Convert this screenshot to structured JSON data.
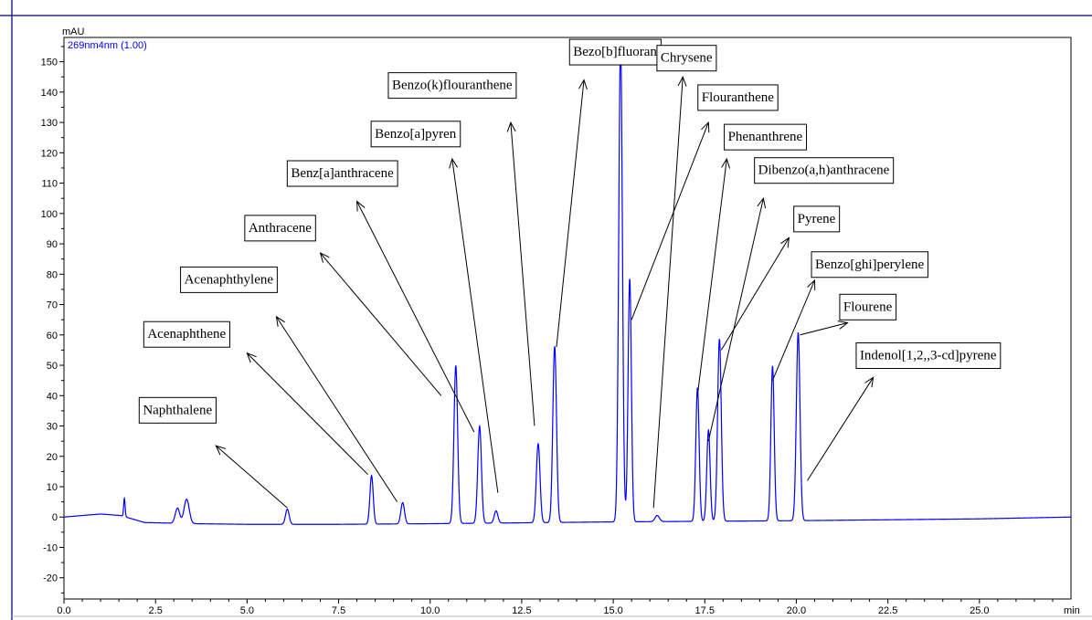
{
  "chart_data": {
    "type": "line",
    "title": "",
    "signal_label": "269nm4nm (1.00)",
    "ylabel": "mAU",
    "xlabel": "min",
    "xlim": [
      0,
      27.5
    ],
    "ylim": [
      -27,
      158
    ],
    "grid": false,
    "x_ticks": [
      "0.0",
      "2.5",
      "5.0",
      "7.5",
      "10.0",
      "12.5",
      "15.0",
      "17.5",
      "20.0",
      "22.5",
      "25.0"
    ],
    "y_ticks": [
      "-20",
      "-10",
      "0",
      "10",
      "20",
      "30",
      "40",
      "50",
      "60",
      "70",
      "80",
      "90",
      "100",
      "110",
      "120",
      "130",
      "140",
      "150"
    ],
    "line_color": "#0000ff",
    "baseline": [
      [
        0,
        0
      ],
      [
        1.0,
        1.0
      ],
      [
        1.55,
        0.5
      ],
      [
        2.2,
        -1.8
      ],
      [
        3.6,
        -2.2
      ],
      [
        5,
        -2.4
      ],
      [
        7.5,
        -2.4
      ],
      [
        10,
        -2.2
      ],
      [
        15,
        -1.6
      ],
      [
        20,
        -1.2
      ],
      [
        25,
        -0.6
      ],
      [
        27.5,
        0
      ]
    ],
    "peaks": [
      {
        "t": 1.65,
        "h": 6,
        "w": 0.02
      },
      {
        "t": 3.1,
        "h": 5,
        "w": 0.06
      },
      {
        "t": 3.35,
        "h": 8,
        "w": 0.07
      },
      {
        "t": 6.1,
        "h": 5,
        "w": 0.05
      },
      {
        "t": 8.4,
        "h": 16,
        "w": 0.045
      },
      {
        "t": 9.25,
        "h": 7,
        "w": 0.05
      },
      {
        "t": 10.7,
        "h": 52,
        "w": 0.05
      },
      {
        "t": 11.35,
        "h": 32,
        "w": 0.05
      },
      {
        "t": 11.8,
        "h": 4,
        "w": 0.05
      },
      {
        "t": 12.95,
        "h": 26,
        "w": 0.05
      },
      {
        "t": 13.4,
        "h": 58,
        "w": 0.05
      },
      {
        "t": 15.2,
        "h": 158,
        "w": 0.05
      },
      {
        "t": 15.45,
        "h": 80,
        "w": 0.045
      },
      {
        "t": 16.2,
        "h": 2,
        "w": 0.06
      },
      {
        "t": 17.3,
        "h": 44,
        "w": 0.045
      },
      {
        "t": 17.6,
        "h": 30,
        "w": 0.045
      },
      {
        "t": 17.9,
        "h": 60,
        "w": 0.05
      },
      {
        "t": 19.35,
        "h": 51,
        "w": 0.045
      },
      {
        "t": 20.05,
        "h": 62,
        "w": 0.05
      }
    ],
    "annotations": [
      {
        "text": "Naphthalene",
        "box_t": 3.1,
        "box_v": 35,
        "from": [
          4.15,
          23.5
        ],
        "to": [
          6.1,
          3
        ]
      },
      {
        "text": "Acenaphthene",
        "box_t": 3.35,
        "box_v": 60,
        "from": [
          5.0,
          54
        ],
        "to": [
          8.3,
          14
        ]
      },
      {
        "text": "Acenaphthylene",
        "box_t": 4.5,
        "box_v": 78,
        "from": [
          5.8,
          66
        ],
        "to": [
          9.1,
          5
        ]
      },
      {
        "text": "Anthracene",
        "box_t": 5.9,
        "box_v": 95,
        "from": [
          7.0,
          87
        ],
        "to": [
          10.3,
          40
        ]
      },
      {
        "text": "Benz[a]anthracene",
        "box_t": 7.6,
        "box_v": 113,
        "from": [
          8.0,
          104
        ],
        "to": [
          11.2,
          28
        ]
      },
      {
        "text": "Benzo[a]pyren",
        "box_t": 9.6,
        "box_v": 126,
        "from": [
          10.6,
          118
        ],
        "to": [
          11.85,
          8
        ]
      },
      {
        "text": "Benzo(k)flouranthene",
        "box_t": 10.6,
        "box_v": 142,
        "from": [
          12.2,
          130
        ],
        "to": [
          12.85,
          30
        ]
      },
      {
        "text": "Bezo[b]fluoran",
        "box_t": 15.05,
        "box_v": 153,
        "from": [
          14.2,
          144
        ],
        "to": [
          13.45,
          56
        ]
      },
      {
        "text": "Chrysene",
        "box_t": 17.0,
        "box_v": 151,
        "from": [
          16.9,
          145
        ],
        "to": [
          16.1,
          3
        ]
      },
      {
        "text": "Flouranthene",
        "box_t": 18.4,
        "box_v": 138,
        "from": [
          17.6,
          130
        ],
        "to": [
          15.5,
          65
        ]
      },
      {
        "text": "Phenanthrene",
        "box_t": 19.15,
        "box_v": 125,
        "from": [
          18.1,
          118
        ],
        "to": [
          17.3,
          40
        ]
      },
      {
        "text": "Dibenzo(a,h)anthracene",
        "box_t": 20.75,
        "box_v": 114,
        "from": [
          19.1,
          105
        ],
        "to": [
          17.6,
          25
        ]
      },
      {
        "text": "Pyrene",
        "box_t": 20.55,
        "box_v": 98,
        "from": [
          19.8,
          92
        ],
        "to": [
          17.95,
          55
        ]
      },
      {
        "text": "Benzo[ghi]perylene",
        "box_t": 22.0,
        "box_v": 83,
        "from": [
          20.5,
          78
        ],
        "to": [
          19.35,
          45
        ]
      },
      {
        "text": "Flourene",
        "box_t": 21.95,
        "box_v": 69,
        "from": [
          21.4,
          64
        ],
        "to": [
          20.1,
          60
        ]
      },
      {
        "text": "Indenol[1,2,,3-cd]pyrene",
        "box_t": 23.6,
        "box_v": 53,
        "from": [
          22.1,
          46
        ],
        "to": [
          20.3,
          12
        ]
      }
    ]
  }
}
